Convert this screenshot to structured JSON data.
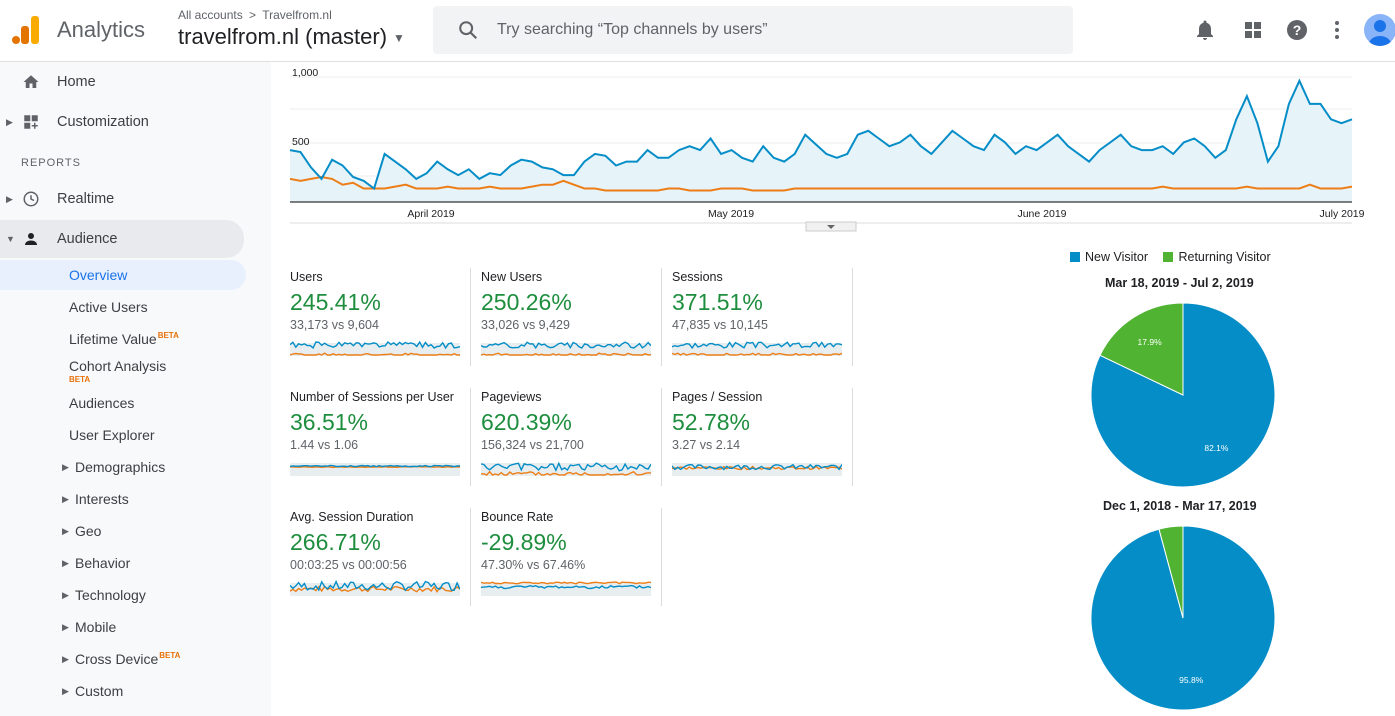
{
  "header": {
    "app_name": "Analytics",
    "breadcrumb_all": "All accounts",
    "breadcrumb_sep": ">",
    "breadcrumb_account": "Travelfrom.nl",
    "property": "travelfrom.nl (master)",
    "search_placeholder": "Try searching “Top channels by users”",
    "icons": [
      "bell-icon",
      "apps-grid-icon",
      "help-icon",
      "more-vert-icon"
    ]
  },
  "sidebar": {
    "home": "Home",
    "customization": "Customization",
    "reports_label": "REPORTS",
    "realtime": "Realtime",
    "audience": "Audience",
    "audience_items": {
      "overview": "Overview",
      "active_users": "Active Users",
      "lifetime_value": "Lifetime Value",
      "cohort_analysis": "Cohort Analysis",
      "audiences": "Audiences",
      "user_explorer": "User Explorer",
      "demographics": "Demographics",
      "interests": "Interests",
      "geo": "Geo",
      "behavior": "Behavior",
      "technology": "Technology",
      "mobile": "Mobile",
      "cross_device": "Cross Device",
      "custom": "Custom"
    },
    "beta_label": "BETA"
  },
  "main_chart": {
    "y_ticks": [
      "1,000",
      "500"
    ],
    "x_ticks": [
      "April 2019",
      "May 2019",
      "June 2019",
      "July 2019"
    ],
    "colors": {
      "current": "#058dc7",
      "previous": "#ed7e17",
      "fill": "#e6f3f9"
    }
  },
  "metrics": [
    {
      "name": "Users",
      "value": "245.41%",
      "compare": "33,173 vs 9,604"
    },
    {
      "name": "New Users",
      "value": "250.26%",
      "compare": "33,026 vs 9,429"
    },
    {
      "name": "Sessions",
      "value": "371.51%",
      "compare": "47,835 vs 10,145"
    },
    {
      "name": "Number of Sessions per User",
      "value": "36.51%",
      "compare": "1.44 vs 1.06"
    },
    {
      "name": "Pageviews",
      "value": "620.39%",
      "compare": "156,324 vs 21,700"
    },
    {
      "name": "Pages / Session",
      "value": "52.78%",
      "compare": "3.27 vs 2.14"
    },
    {
      "name": "Avg. Session Duration",
      "value": "266.71%",
      "compare": "00:03:25 vs 00:00:56"
    },
    {
      "name": "Bounce Rate",
      "value": "-29.89%",
      "compare": "47.30% vs 67.46%"
    }
  ],
  "pies": {
    "legend": {
      "new": "New Visitor",
      "returning": "Returning Visitor"
    },
    "colors": {
      "new": "#058dc7",
      "returning": "#50b432"
    },
    "period1": {
      "title": "Mar 18, 2019 - Jul 2, 2019",
      "new_pct": 82.1,
      "returning_pct": 17.9,
      "new_label": "82.1%",
      "returning_label": "17.9%"
    },
    "period2": {
      "title": "Dec 1, 2018 - Mar 17, 2019",
      "new_pct": 95.8,
      "returning_pct": 4.2,
      "new_label": "95.8%"
    }
  }
}
